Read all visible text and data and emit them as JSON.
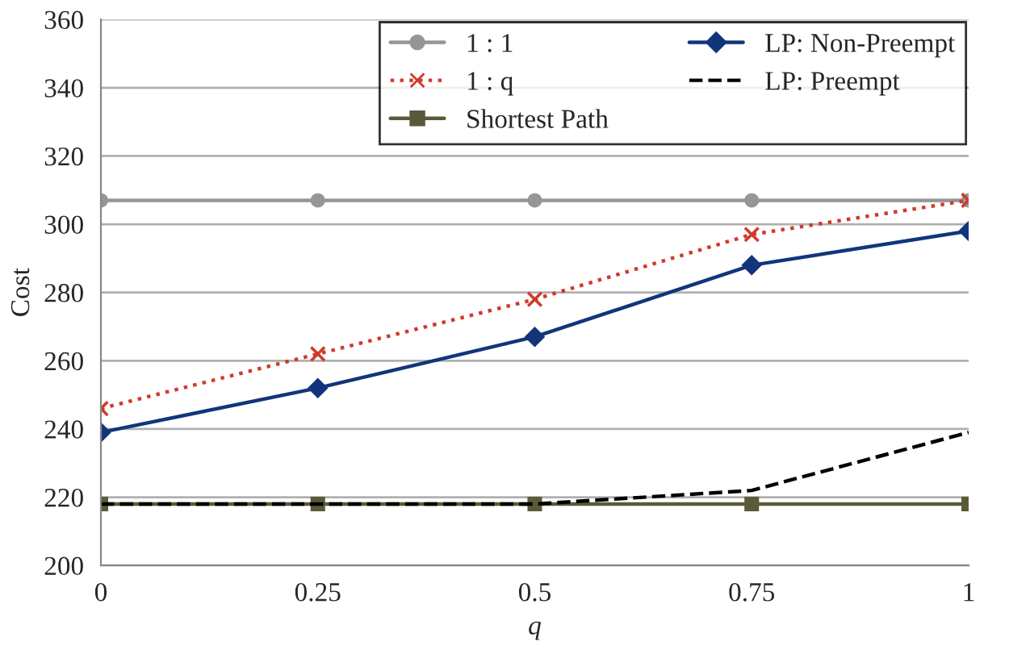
{
  "chart_data": {
    "type": "line",
    "xlabel": "q",
    "ylabel": "Cost",
    "x": [
      0,
      0.25,
      0.5,
      0.75,
      1
    ],
    "series": [
      {
        "name": "1 : 1",
        "color": "#969696",
        "marker": "circle",
        "line_style": "solid",
        "values": [
          307,
          307,
          307,
          307,
          307
        ]
      },
      {
        "name": "1 : q",
        "color": "#d03a2a",
        "marker": "cross",
        "line_style": "dotted",
        "values": [
          246,
          262,
          278,
          297,
          307
        ]
      },
      {
        "name": "Shortest Path",
        "color": "#5a5a38",
        "marker": "square",
        "line_style": "solid",
        "values": [
          218,
          218,
          218,
          218,
          218
        ]
      },
      {
        "name": "LP: Non-Preempt",
        "color": "#12357a",
        "marker": "diamond",
        "line_style": "solid",
        "values": [
          239,
          252,
          267,
          288,
          298
        ]
      },
      {
        "name": "LP: Preempt",
        "color": "#000000",
        "marker": "none",
        "line_style": "dashed",
        "values": [
          218,
          218,
          218,
          222,
          239
        ]
      }
    ],
    "xlim": [
      0,
      1
    ],
    "xticks": [
      0,
      0.25,
      0.5,
      0.75,
      1
    ],
    "ylim": [
      200,
      360
    ],
    "yticks": [
      200,
      220,
      240,
      260,
      280,
      300,
      320,
      340,
      360
    ],
    "grid": "y",
    "legend": "top right"
  }
}
